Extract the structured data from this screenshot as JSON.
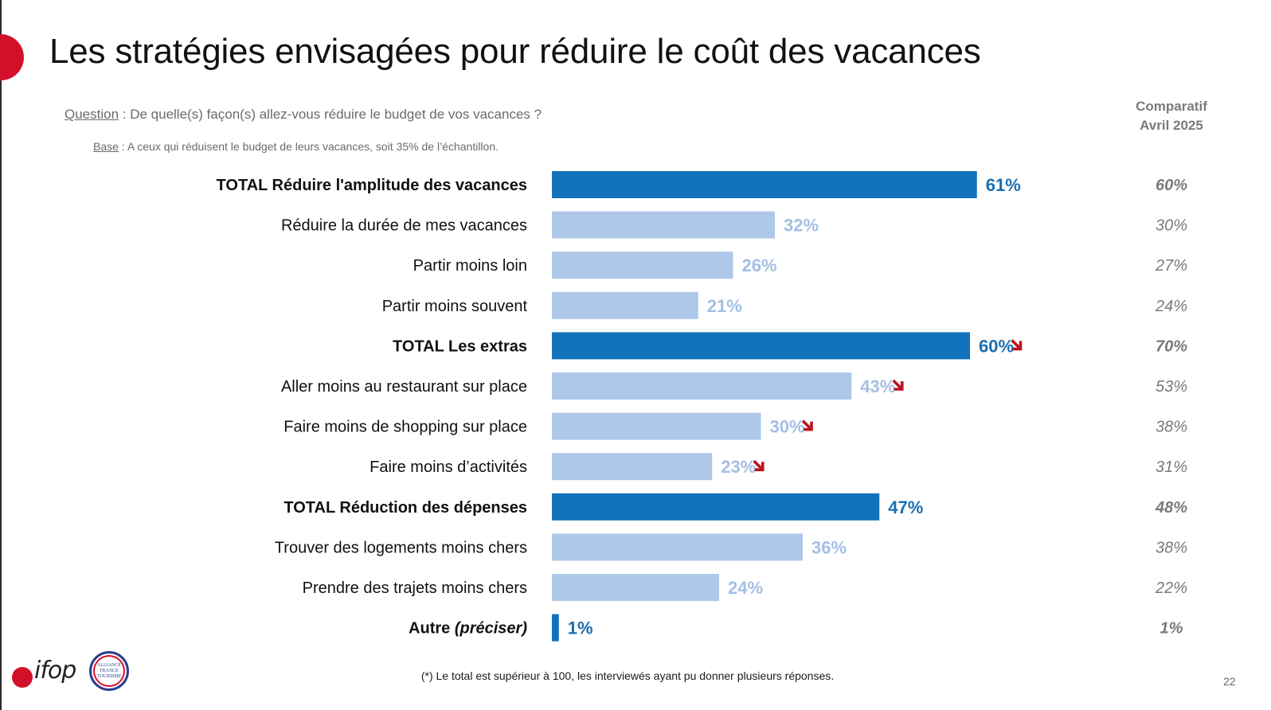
{
  "title": "Les stratégies envisagées pour réduire le coût des vacances",
  "question": {
    "label": "Question",
    "text": " : De quelle(s) façon(s) allez-vous réduire le budget de vos vacances ?"
  },
  "base": {
    "label": "Base",
    "text": " : A ceux qui réduisent le budget de leurs vacances, soit 35% de l’échantillon."
  },
  "comparison_header": {
    "line1": "Comparatif",
    "line2": "Avril 2025"
  },
  "footnote": "(*) Le total est supérieur à 100, les interviewés ayant pu donner plusieurs réponses.",
  "page_number": "22",
  "logos": {
    "ifop": "ifop",
    "alliance": [
      "ALLIANCE",
      "FRANCE",
      "TOURISME"
    ]
  },
  "colors": {
    "total_bar": "#1272bb",
    "sub_bar": "#aec8ea",
    "total_label": "#1a6fb0",
    "sub_label": "#a3bfe3",
    "down_arrow": "#c0111f",
    "comparison": "#7a7a7a",
    "brand_red": "#d3102a"
  },
  "chart_data": {
    "type": "bar",
    "orientation": "horizontal",
    "title": "Les stratégies envisagées pour réduire le coût des vacances",
    "xlim": [
      0,
      100
    ],
    "unit": "%",
    "categories": [
      "TOTAL Réduire l'amplitude des vacances",
      "Réduire la durée de mes vacances",
      "Partir moins loin",
      "Partir moins souvent",
      "TOTAL Les extras",
      "Aller moins au restaurant sur place",
      "Faire moins de shopping sur place",
      "Faire moins d’activités",
      "TOTAL Réduction des dépenses",
      "Trouver des logements moins chers",
      "Prendre des trajets moins chers",
      "Autre (préciser)"
    ],
    "values": [
      61,
      32,
      26,
      21,
      60,
      43,
      30,
      23,
      47,
      36,
      24,
      1
    ],
    "value_labels": [
      "61%",
      "32%",
      "26%",
      "21%",
      "60%",
      "43%",
      "30%",
      "23%",
      "47%",
      "36%",
      "24%",
      "1%"
    ],
    "is_total": [
      true,
      false,
      false,
      false,
      true,
      false,
      false,
      false,
      true,
      false,
      false,
      true
    ],
    "trend_down": [
      false,
      false,
      false,
      false,
      true,
      true,
      true,
      true,
      false,
      false,
      false,
      false
    ],
    "comparison_series": {
      "name": "Comparatif Avril 2025",
      "labels": [
        "60%",
        "30%",
        "27%",
        "24%",
        "70%",
        "53%",
        "38%",
        "31%",
        "48%",
        "38%",
        "22%",
        "1%"
      ]
    }
  }
}
